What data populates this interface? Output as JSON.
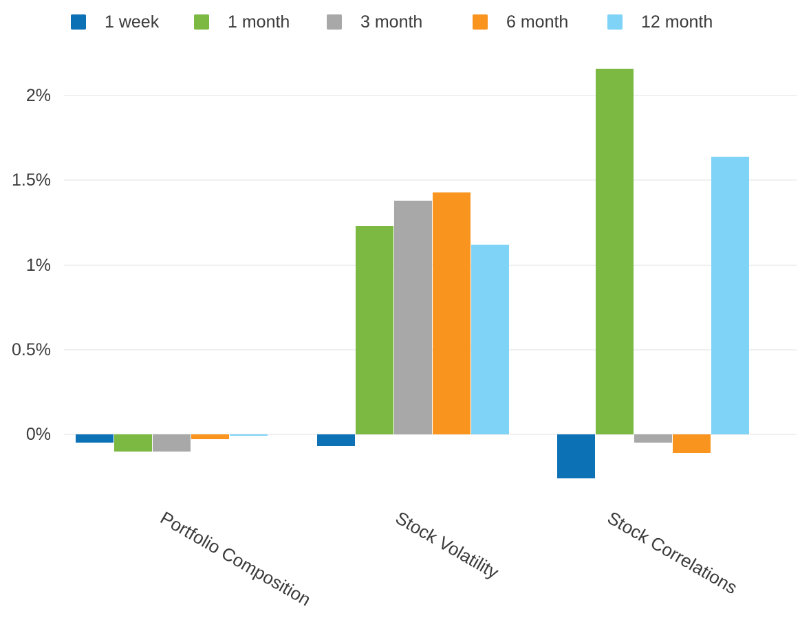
{
  "chart_data": {
    "type": "bar",
    "title": "",
    "categories": [
      "Portfolio Composition",
      "Stock Volatility",
      "Stock Correlations"
    ],
    "series": [
      {
        "name": "1 week",
        "color": "#0d71b6",
        "values": [
          -0.05,
          -0.07,
          -0.26
        ]
      },
      {
        "name": "1 month",
        "color": "#7cb942",
        "values": [
          -0.1,
          1.23,
          2.16
        ]
      },
      {
        "name": "3 month",
        "color": "#a8a8a8",
        "values": [
          -0.1,
          1.38,
          -0.05
        ]
      },
      {
        "name": "6 month",
        "color": "#f9941f",
        "values": [
          -0.03,
          1.43,
          -0.11
        ]
      },
      {
        "name": "12 month",
        "color": "#7ed3f7",
        "values": [
          -0.01,
          1.12,
          1.64
        ]
      }
    ],
    "xlabel": "",
    "ylabel": "",
    "unit": "%",
    "y_ticks": [
      "0%",
      "0.5%",
      "1%",
      "1.5%",
      "2%"
    ],
    "y_tick_values": [
      0,
      0.5,
      1,
      1.5,
      2
    ],
    "ylim": [
      -0.35,
      2.25
    ],
    "grid": true,
    "legend_position": "top",
    "text_color": "#3b3b3b",
    "gridline_color": "#f0f0f0"
  }
}
